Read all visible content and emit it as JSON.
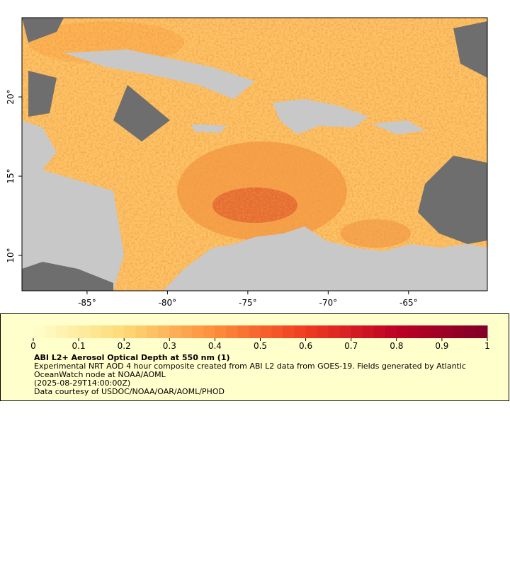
{
  "map": {
    "xlim": [
      -89.05,
      -60.1
    ],
    "ylim": [
      7.77,
      25.0
    ],
    "xticks": [
      {
        "value": -85,
        "label": "-85°"
      },
      {
        "value": -80,
        "label": "-80°"
      },
      {
        "value": -75,
        "label": "-75°"
      },
      {
        "value": -70,
        "label": "-70°"
      },
      {
        "value": -65,
        "label": "-65°"
      }
    ],
    "yticks": [
      {
        "value": 10,
        "label": "10°"
      },
      {
        "value": 15,
        "label": "15°"
      },
      {
        "value": 20,
        "label": "20°"
      }
    ]
  },
  "colorbar": {
    "lim": [
      0,
      1
    ],
    "ticks": [
      0,
      0.1,
      0.2,
      0.3,
      0.4,
      0.5,
      0.6,
      0.7,
      0.8,
      0.9,
      1
    ]
  },
  "legend": {
    "title": "ABI L2+ Aerosol Optical Depth at 550 nm (1)",
    "description": "Experimental NRT AOD 4 hour composite created from ABI L2 data from GOES-19. Fields generated by Atlantic OceanWatch node at NOAA/AOML",
    "time": "(2025-08-29T14:00:00Z)",
    "credit": "Data courtesy of USDOC/NOAA/OAR/AOML/PHOD"
  }
}
